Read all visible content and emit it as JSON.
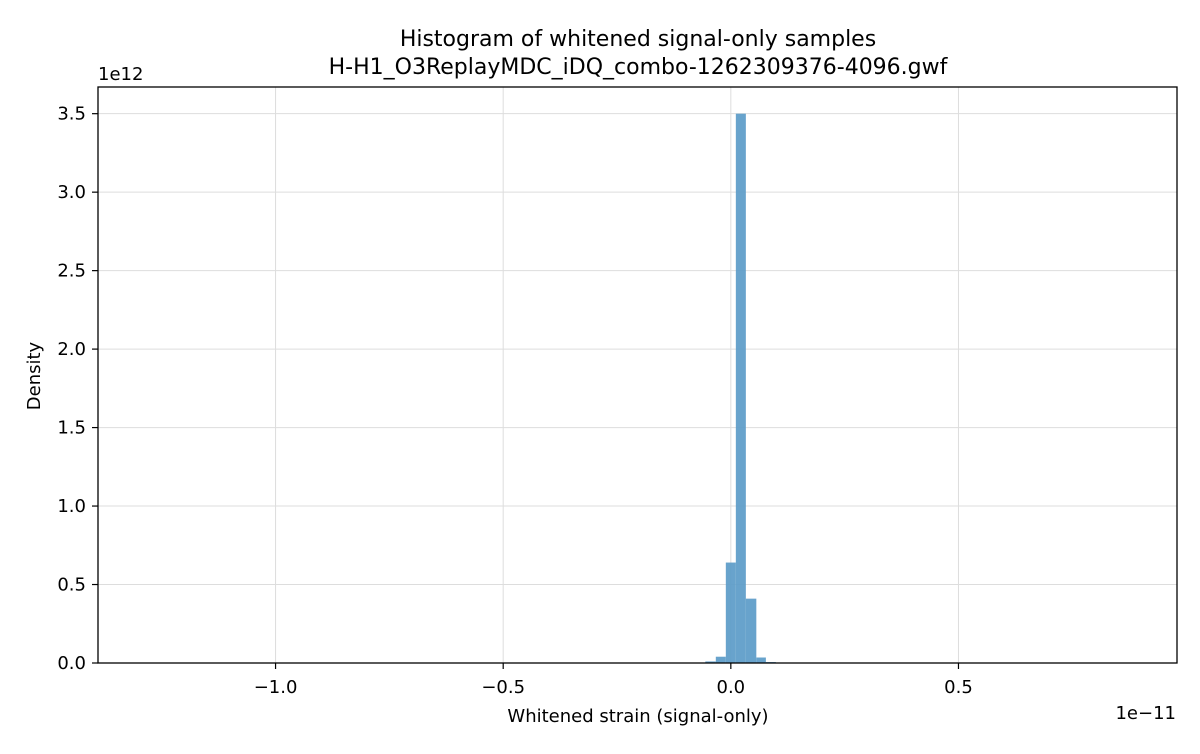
{
  "chart_data": {
    "type": "bar",
    "title": "Histogram of whitened signal-only samples",
    "subtitle": "H-H1_O3ReplayMDC_iDQ_combo-1262309376-4096.gwf",
    "xlabel": "Whitened strain (signal-only)",
    "ylabel": "Density",
    "x_multiplier": "1e−11",
    "y_multiplier": "1e12",
    "xlim": [
      -1.39,
      0.98
    ],
    "ylim": [
      0,
      3.67
    ],
    "x_ticks": [
      -1.0,
      -0.5,
      0.0,
      0.5
    ],
    "x_tick_labels": [
      "−1.0",
      "−0.5",
      "0.0",
      "0.5"
    ],
    "y_ticks": [
      0.0,
      0.5,
      1.0,
      1.5,
      2.0,
      2.5,
      3.0,
      3.5
    ],
    "y_tick_labels": [
      "0.0",
      "0.5",
      "1.0",
      "1.5",
      "2.0",
      "2.5",
      "3.0",
      "3.5"
    ],
    "grid": true,
    "bar_color": "#5b9bc8",
    "bins": [
      {
        "x0": -0.077,
        "x1": -0.056,
        "value": 0.003
      },
      {
        "x0": -0.056,
        "x1": -0.033,
        "value": 0.01
      },
      {
        "x0": -0.033,
        "x1": -0.011,
        "value": 0.04
      },
      {
        "x0": -0.011,
        "x1": 0.011,
        "value": 0.64
      },
      {
        "x0": 0.011,
        "x1": 0.033,
        "value": 3.5
      },
      {
        "x0": 0.033,
        "x1": 0.056,
        "value": 0.41
      },
      {
        "x0": 0.056,
        "x1": 0.077,
        "value": 0.035
      },
      {
        "x0": 0.077,
        "x1": 0.099,
        "value": 0.006
      }
    ]
  }
}
